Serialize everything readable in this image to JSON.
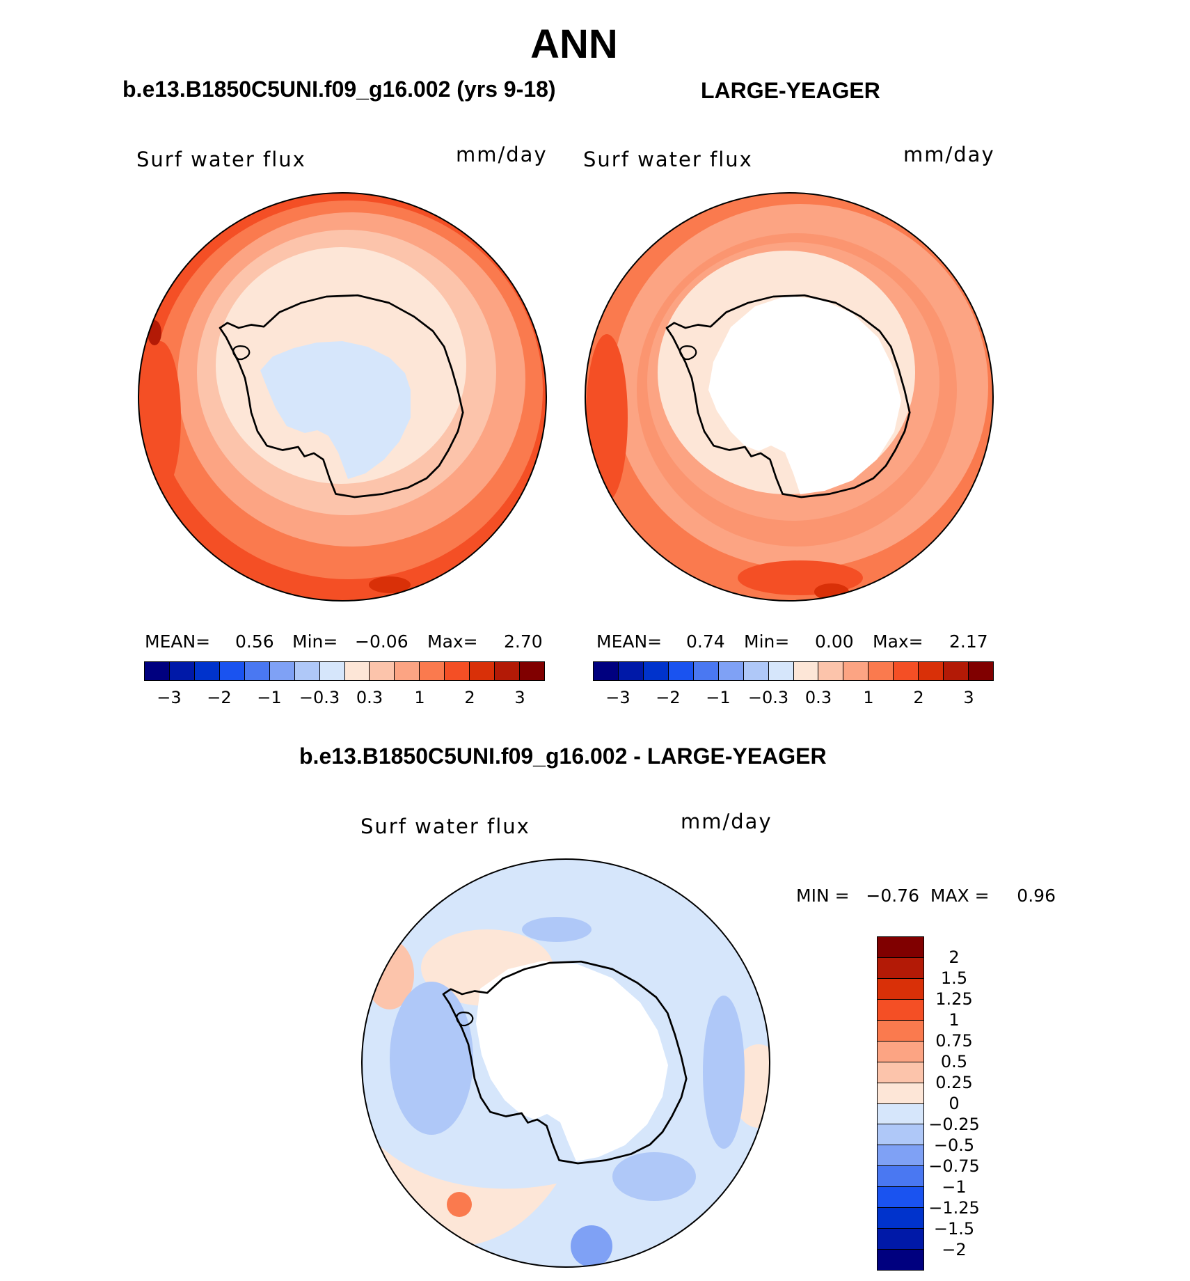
{
  "title": "ANN",
  "panels": [
    {
      "subtitle": "b.e13.B1850C5UNI.f09_g16.002 (yrs 9-18)",
      "variable": "Surf  water  flux",
      "units": "mm/day",
      "stats": {
        "mean_label": "MEAN=",
        "mean": "0.56",
        "min_label": "Min=",
        "min": "−0.06",
        "max_label": "Max=",
        "max": "2.70"
      }
    },
    {
      "subtitle": "LARGE-YEAGER",
      "variable": "Surf  water  flux",
      "units": "mm/day",
      "stats": {
        "mean_label": "MEAN=",
        "mean": "0.74",
        "min_label": "Min=",
        "min": "0.00",
        "max_label": "Max=",
        "max": "2.17"
      }
    },
    {
      "subtitle": "b.e13.B1850C5UNI.f09_g16.002 - LARGE-YEAGER",
      "variable": "Surf  water  flux",
      "units": "mm/day",
      "minmax": "MIN =   −0.76  MAX =     0.96"
    }
  ],
  "colorbar_top": {
    "colors": [
      "#00007f",
      "#0019a8",
      "#0033cc",
      "#1a53f0",
      "#4a78f2",
      "#7fa1f5",
      "#afc8f8",
      "#d6e6fb",
      "#fde6d7",
      "#fcc4ab",
      "#fca483",
      "#fa7a4e",
      "#f44f25",
      "#d93008",
      "#b31a06",
      "#800000"
    ],
    "ticks": [
      "−3",
      "−2",
      "−1",
      "−0.3",
      "0.3",
      "1",
      "2",
      "3"
    ]
  },
  "colorbar_diff": {
    "colors_top_to_bottom": [
      "#800000",
      "#b31a06",
      "#d93008",
      "#f44f25",
      "#fa7a4e",
      "#fca483",
      "#fcc4ab",
      "#fde6d7",
      "#d6e6fb",
      "#afc8f8",
      "#7fa1f5",
      "#4a78f2",
      "#1a53f0",
      "#0033cc",
      "#0019a8",
      "#00007f"
    ],
    "ticks": [
      "2",
      "1.5",
      "1.25",
      "1",
      "0.75",
      "0.5",
      "0.25",
      "0",
      "−0.25",
      "−0.5",
      "−0.75",
      "−1",
      "−1.25",
      "−1.5",
      "−2"
    ]
  }
}
